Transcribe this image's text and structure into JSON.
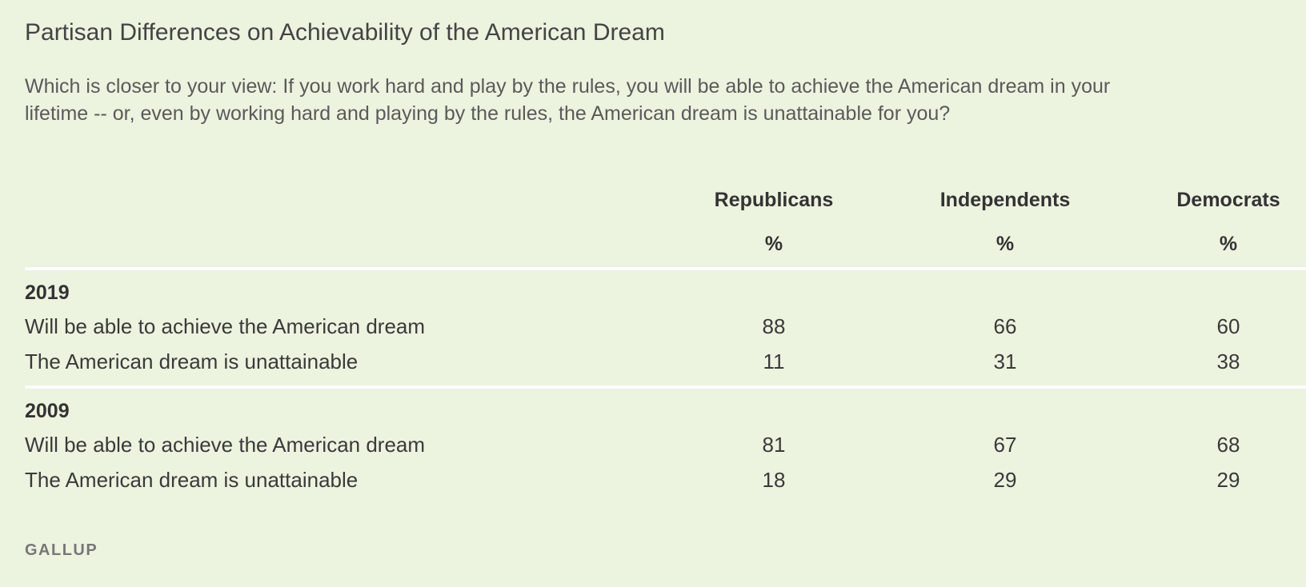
{
  "chart_data": {
    "type": "table",
    "title": "Partisan Differences on Achievability of the American Dream",
    "subtitle": "Which is closer to your view: If you work hard and play by the rules, you will be able to achieve the American dream in your lifetime -- or, even by working hard and playing by the rules, the American dream is unattainable for you?",
    "columns": [
      "Republicans",
      "Independents",
      "Democrats"
    ],
    "unit": "%",
    "groups": [
      {
        "label": "2019",
        "rows": [
          {
            "label": "Will be able to achieve the American dream",
            "values": [
              88,
              66,
              60
            ]
          },
          {
            "label": "The American dream is unattainable",
            "values": [
              11,
              31,
              38
            ]
          }
        ]
      },
      {
        "label": "2009",
        "rows": [
          {
            "label": "Will be able to achieve the American dream",
            "values": [
              81,
              67,
              68
            ]
          },
          {
            "label": "The American dream is unattainable",
            "values": [
              18,
              29,
              29
            ]
          }
        ]
      }
    ],
    "source": "GALLUP"
  },
  "colors": {
    "background": "#ecf3df",
    "rule": "#ffffff",
    "text": "#333333",
    "source": "#777777"
  }
}
